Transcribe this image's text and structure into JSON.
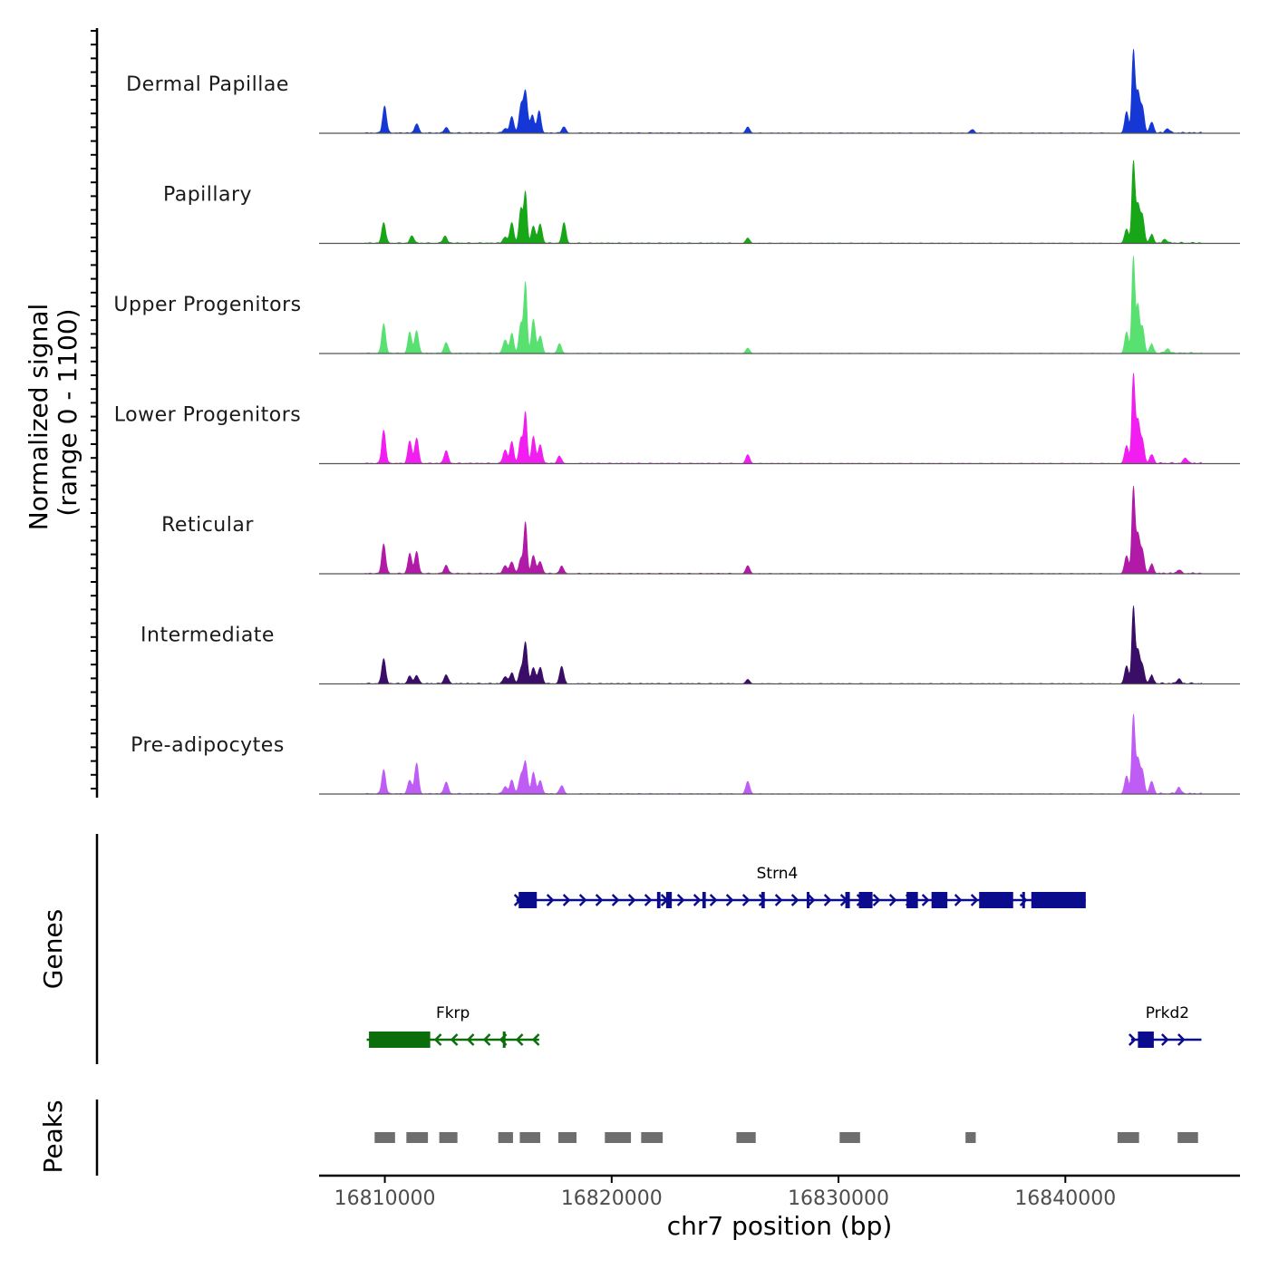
{
  "chart_data": {
    "type": "area",
    "title": "",
    "xlabel": "chr7 position (bp)",
    "ylabel": "Normalized signal",
    "ylabel_range": "(range 0 - 1100)",
    "ylim": [
      0,
      1100
    ],
    "xlim": [
      16807100,
      16847700
    ],
    "x_ticks": [
      16810000,
      16820000,
      16830000,
      16840000
    ],
    "x_tick_labels": [
      "16810000",
      "16820000",
      "16830000",
      "16840000"
    ],
    "region_end": 16846000,
    "tracks": [
      {
        "name": "Dermal Papillae",
        "color": "#1537d6",
        "peaks": [
          [
            16809990,
            300
          ],
          [
            16811400,
            100
          ],
          [
            16812700,
            60
          ],
          [
            16815300,
            50
          ],
          [
            16815600,
            180
          ],
          [
            16816000,
            300
          ],
          [
            16816200,
            460
          ],
          [
            16816500,
            200
          ],
          [
            16816800,
            240
          ],
          [
            16817900,
            70
          ],
          [
            16826000,
            70
          ],
          [
            16835900,
            40
          ],
          [
            16842700,
            240
          ],
          [
            16843000,
            900
          ],
          [
            16843200,
            450
          ],
          [
            16843400,
            280
          ],
          [
            16843800,
            120
          ],
          [
            16844500,
            50
          ]
        ]
      },
      {
        "name": "Papillary",
        "color": "#17a617",
        "peaks": [
          [
            16809950,
            230
          ],
          [
            16811200,
            80
          ],
          [
            16812650,
            80
          ],
          [
            16815300,
            70
          ],
          [
            16815600,
            230
          ],
          [
            16816000,
            380
          ],
          [
            16816200,
            550
          ],
          [
            16816550,
            190
          ],
          [
            16816850,
            210
          ],
          [
            16817900,
            230
          ],
          [
            16826000,
            60
          ],
          [
            16842700,
            160
          ],
          [
            16843000,
            890
          ],
          [
            16843200,
            420
          ],
          [
            16843400,
            300
          ],
          [
            16843800,
            90
          ],
          [
            16844400,
            40
          ]
        ]
      },
      {
        "name": "Upper Progenitors",
        "color": "#58e070",
        "peaks": [
          [
            16809950,
            330
          ],
          [
            16811100,
            230
          ],
          [
            16811400,
            250
          ],
          [
            16812700,
            120
          ],
          [
            16815300,
            150
          ],
          [
            16815600,
            220
          ],
          [
            16816000,
            330
          ],
          [
            16816200,
            770
          ],
          [
            16816550,
            380
          ],
          [
            16816850,
            190
          ],
          [
            16817700,
            100
          ],
          [
            16826000,
            60
          ],
          [
            16842700,
            240
          ],
          [
            16843000,
            1070
          ],
          [
            16843200,
            520
          ],
          [
            16843400,
            300
          ],
          [
            16843800,
            100
          ],
          [
            16844500,
            50
          ]
        ]
      },
      {
        "name": "Lower Progenitors",
        "color": "#f21df0",
        "peaks": [
          [
            16809950,
            370
          ],
          [
            16811100,
            250
          ],
          [
            16811400,
            280
          ],
          [
            16812700,
            140
          ],
          [
            16815300,
            150
          ],
          [
            16815600,
            240
          ],
          [
            16816000,
            280
          ],
          [
            16816200,
            560
          ],
          [
            16816550,
            300
          ],
          [
            16816850,
            200
          ],
          [
            16817700,
            80
          ],
          [
            16826000,
            100
          ],
          [
            16842700,
            200
          ],
          [
            16843000,
            970
          ],
          [
            16843200,
            470
          ],
          [
            16843400,
            250
          ],
          [
            16843800,
            100
          ],
          [
            16845300,
            60
          ]
        ]
      },
      {
        "name": "Reticular",
        "color": "#b01aa6",
        "peaks": [
          [
            16809950,
            330
          ],
          [
            16811100,
            220
          ],
          [
            16811400,
            240
          ],
          [
            16812700,
            90
          ],
          [
            16815300,
            90
          ],
          [
            16815600,
            130
          ],
          [
            16816000,
            160
          ],
          [
            16816200,
            560
          ],
          [
            16816550,
            200
          ],
          [
            16816850,
            130
          ],
          [
            16817800,
            80
          ],
          [
            16826000,
            90
          ],
          [
            16842700,
            200
          ],
          [
            16843000,
            940
          ],
          [
            16843200,
            430
          ],
          [
            16843400,
            250
          ],
          [
            16843800,
            100
          ],
          [
            16845000,
            40
          ]
        ]
      },
      {
        "name": "Intermediate",
        "color": "#3a0d66",
        "peaks": [
          [
            16809950,
            280
          ],
          [
            16811100,
            80
          ],
          [
            16811400,
            90
          ],
          [
            16812700,
            100
          ],
          [
            16815300,
            80
          ],
          [
            16815600,
            120
          ],
          [
            16816000,
            150
          ],
          [
            16816200,
            450
          ],
          [
            16816550,
            180
          ],
          [
            16816850,
            180
          ],
          [
            16817800,
            190
          ],
          [
            16826000,
            50
          ],
          [
            16842700,
            200
          ],
          [
            16843000,
            840
          ],
          [
            16843200,
            360
          ],
          [
            16843400,
            200
          ],
          [
            16843800,
            90
          ],
          [
            16845000,
            50
          ]
        ]
      },
      {
        "name": "Pre-adipocytes",
        "color": "#bf5cf5",
        "peaks": [
          [
            16809950,
            270
          ],
          [
            16811100,
            150
          ],
          [
            16811400,
            340
          ],
          [
            16812700,
            130
          ],
          [
            16815300,
            80
          ],
          [
            16815600,
            150
          ],
          [
            16816000,
            200
          ],
          [
            16816200,
            350
          ],
          [
            16816550,
            240
          ],
          [
            16816850,
            140
          ],
          [
            16817800,
            90
          ],
          [
            16826000,
            140
          ],
          [
            16842700,
            200
          ],
          [
            16843000,
            860
          ],
          [
            16843200,
            380
          ],
          [
            16843400,
            250
          ],
          [
            16843800,
            140
          ],
          [
            16845000,
            70
          ]
        ]
      }
    ],
    "genes_panel_label": "Genes",
    "genes": [
      {
        "name": "Strn4",
        "strand": "+",
        "start": 16815800,
        "end": 16840900,
        "color": "#0b0b8e",
        "exons": [
          [
            16815900,
            16816700
          ],
          [
            16822000,
            16822150
          ],
          [
            16822400,
            16822650
          ],
          [
            16824000,
            16824150
          ],
          [
            16826600,
            16826750
          ],
          [
            16828600,
            16828700
          ],
          [
            16830300,
            16830500
          ],
          [
            16830900,
            16831500
          ],
          [
            16833000,
            16833500
          ],
          [
            16834100,
            16834800
          ],
          [
            16836200,
            16837700
          ],
          [
            16838100,
            16838200
          ],
          [
            16838500,
            16840900
          ]
        ]
      },
      {
        "name": "Fkrp",
        "strand": "-",
        "start": 16809200,
        "end": 16816800,
        "color": "#0b6e0b",
        "exons": [
          [
            16809300,
            16812000
          ],
          [
            16815200,
            16815300
          ]
        ]
      },
      {
        "name": "Prkd2",
        "strand": "+",
        "start": 16842900,
        "end": 16846000,
        "color": "#0b0b8e",
        "exons": [
          [
            16843200,
            16843900
          ]
        ]
      }
    ],
    "peaks_panel_label": "Peaks",
    "peak_color": "#6e6e6e",
    "peak_regions": [
      [
        16809550,
        16810450
      ],
      [
        16810950,
        16811900
      ],
      [
        16812400,
        16813200
      ],
      [
        16815000,
        16815650
      ],
      [
        16815950,
        16816850
      ],
      [
        16817650,
        16818450
      ],
      [
        16819700,
        16820850
      ],
      [
        16821300,
        16822250
      ],
      [
        16825500,
        16826350
      ],
      [
        16830050,
        16830950
      ],
      [
        16835600,
        16836050
      ],
      [
        16842300,
        16843250
      ],
      [
        16844950,
        16845850
      ]
    ]
  }
}
